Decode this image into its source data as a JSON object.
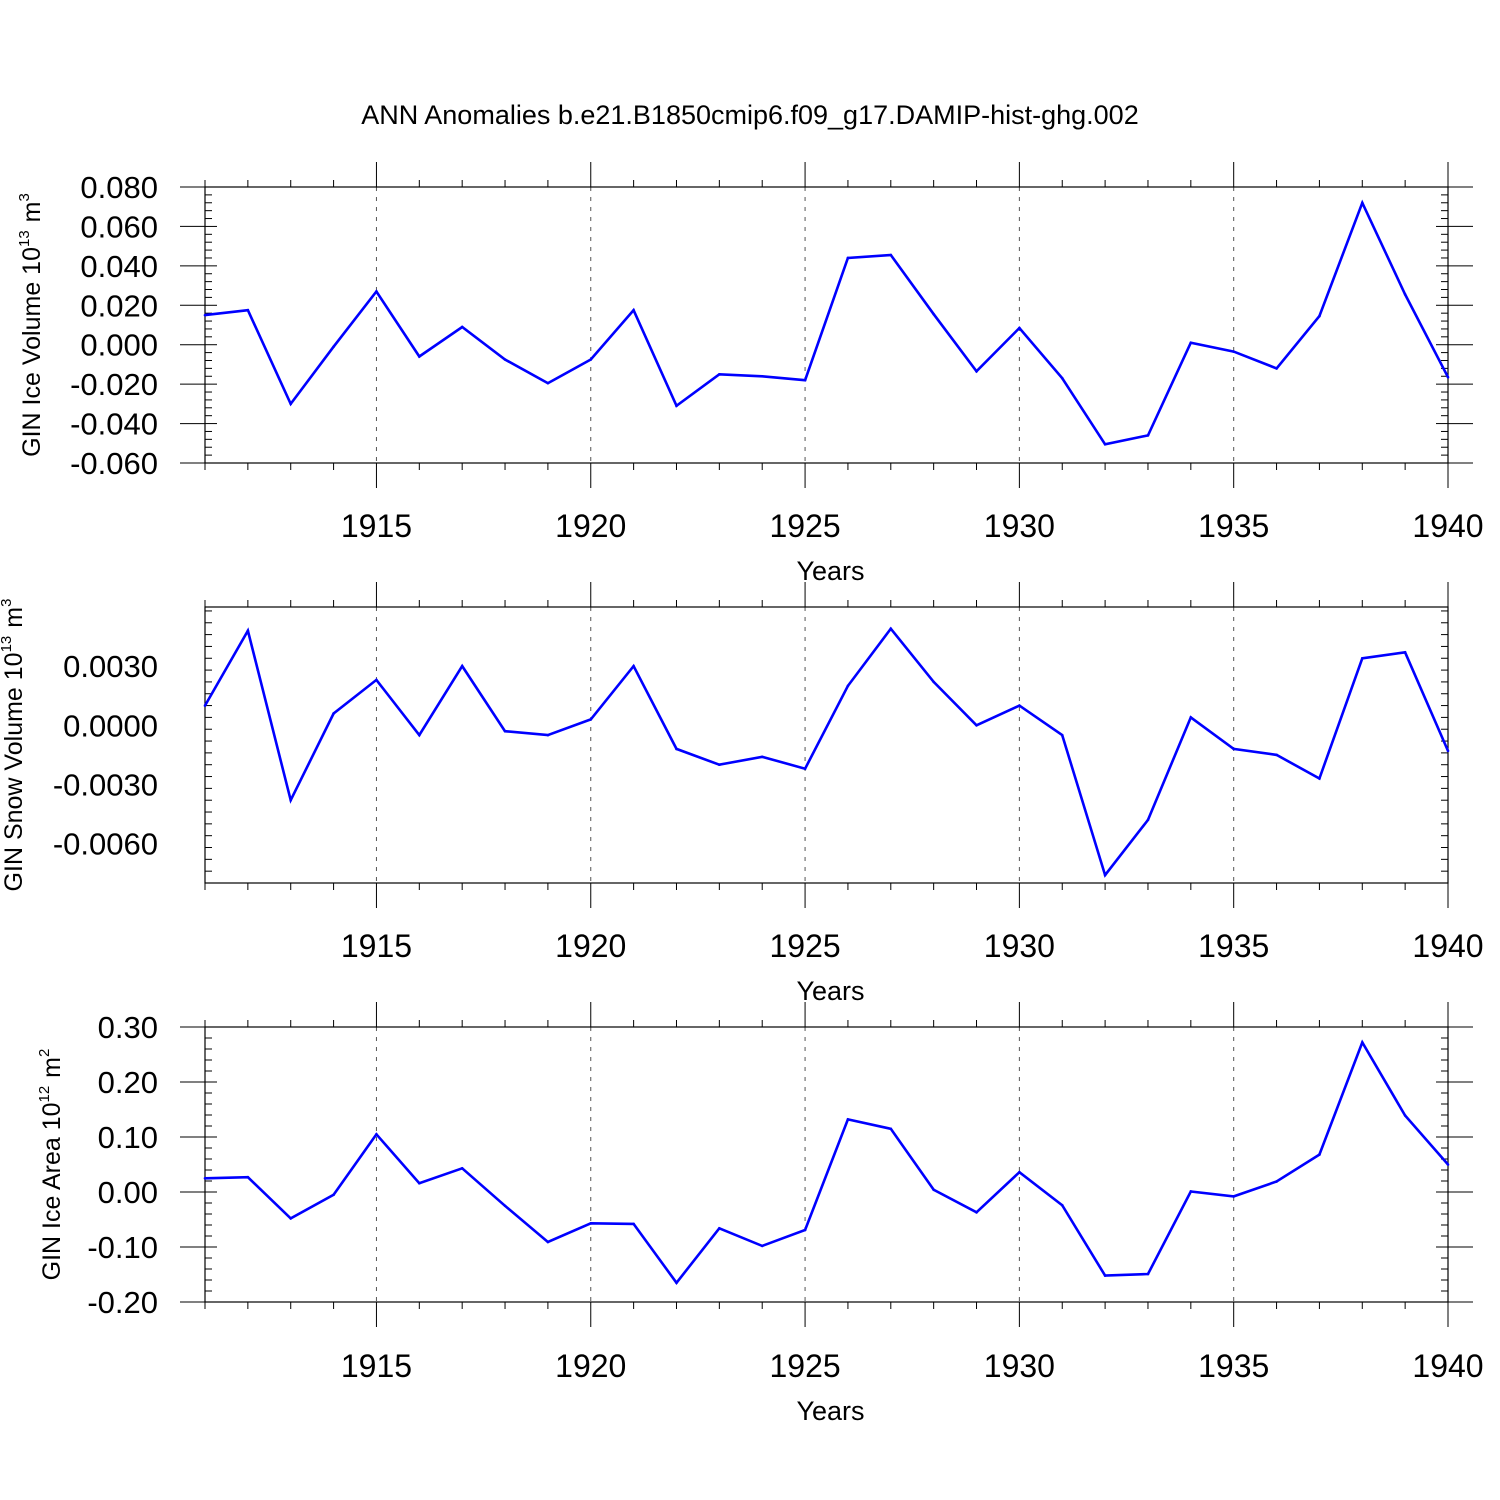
{
  "title": "ANN Anomalies b.e21.B1850cmip6.f09_g17.DAMIP-hist-ghg.002",
  "colors": {
    "series": "#0000ff",
    "axis": "#000000",
    "grid": "#555555"
  },
  "chart_data": [
    {
      "type": "line",
      "ylabel": {
        "text": "GIN Ice Volume 10",
        "exp": "13",
        "unit": "m",
        "unit_exp": "3"
      },
      "xlabel": "Years",
      "xlim": [
        1911,
        1940
      ],
      "ylim": [
        -0.06,
        0.08
      ],
      "xticks": [
        1915,
        1920,
        1925,
        1930,
        1935,
        1940
      ],
      "yticks": [
        -0.06,
        -0.04,
        -0.02,
        0.0,
        0.02,
        0.04,
        0.06,
        0.08
      ],
      "ytick_labels": [
        "-0.060",
        "-0.040",
        "-0.020",
        "0.000",
        "0.020",
        "0.040",
        "0.060",
        "0.080"
      ],
      "grid": "vertical dashed at major x ticks",
      "x": [
        1911,
        1912,
        1913,
        1914,
        1915,
        1916,
        1917,
        1918,
        1919,
        1920,
        1921,
        1922,
        1923,
        1924,
        1925,
        1926,
        1927,
        1928,
        1929,
        1930,
        1931,
        1932,
        1933,
        1934,
        1935,
        1936,
        1937,
        1938,
        1939,
        1940
      ],
      "values": [
        0.015,
        0.0175,
        -0.03,
        -0.001,
        0.027,
        -0.006,
        0.009,
        -0.0075,
        -0.0195,
        -0.0075,
        0.0175,
        -0.031,
        -0.015,
        -0.016,
        -0.018,
        0.044,
        0.0455,
        0.0155,
        -0.0135,
        0.0085,
        -0.017,
        -0.0505,
        -0.046,
        0.001,
        -0.0035,
        -0.012,
        0.0145,
        0.072,
        0.0255,
        -0.0165
      ]
    },
    {
      "type": "line",
      "ylabel": {
        "text": "GIN Snow Volume 10",
        "exp": "13",
        "unit": "m",
        "unit_exp": "3"
      },
      "xlabel": "Years",
      "xlim": [
        1911,
        1940
      ],
      "ylim": [
        -0.008,
        0.006
      ],
      "xticks": [
        1915,
        1920,
        1925,
        1930,
        1935,
        1940
      ],
      "yticks": [
        -0.006,
        -0.003,
        0.0,
        0.003
      ],
      "ytick_labels": [
        "-0.0060",
        "-0.0030",
        "0.0000",
        "0.0030"
      ],
      "grid": "vertical dashed at major x ticks",
      "x": [
        1911,
        1912,
        1913,
        1914,
        1915,
        1916,
        1917,
        1918,
        1919,
        1920,
        1921,
        1922,
        1923,
        1924,
        1925,
        1926,
        1927,
        1928,
        1929,
        1930,
        1931,
        1932,
        1933,
        1934,
        1935,
        1936,
        1937,
        1938,
        1939,
        1940
      ],
      "values": [
        0.001,
        0.0048,
        -0.0038,
        0.0006,
        0.0023,
        -0.0005,
        0.003,
        -0.0003,
        -0.0005,
        0.0003,
        0.003,
        -0.0012,
        -0.002,
        -0.0016,
        -0.0022,
        0.002,
        0.0049,
        0.0022,
        0.0,
        0.001,
        -0.0005,
        -0.0076,
        -0.0048,
        0.0004,
        -0.0012,
        -0.0015,
        -0.0027,
        0.0034,
        0.0037,
        -0.0013
      ]
    },
    {
      "type": "line",
      "ylabel": {
        "text": "GIN Ice Area 10",
        "exp": "12",
        "unit": "m",
        "unit_exp": "2"
      },
      "xlabel": "Years",
      "xlim": [
        1911,
        1940
      ],
      "ylim": [
        -0.2,
        0.3
      ],
      "xticks": [
        1915,
        1920,
        1925,
        1930,
        1935,
        1940
      ],
      "yticks": [
        -0.2,
        -0.1,
        0.0,
        0.1,
        0.2,
        0.3
      ],
      "ytick_labels": [
        "-0.20",
        "-0.10",
        "0.00",
        "0.10",
        "0.20",
        "0.30"
      ],
      "grid": "vertical dashed at major x ticks",
      "x": [
        1911,
        1912,
        1913,
        1914,
        1915,
        1916,
        1917,
        1918,
        1919,
        1920,
        1921,
        1922,
        1923,
        1924,
        1925,
        1926,
        1927,
        1928,
        1929,
        1930,
        1931,
        1932,
        1933,
        1934,
        1935,
        1936,
        1937,
        1938,
        1939,
        1940
      ],
      "values": [
        0.025,
        0.027,
        -0.048,
        -0.005,
        0.105,
        0.016,
        0.043,
        -0.025,
        -0.091,
        -0.057,
        -0.058,
        -0.165,
        -0.066,
        -0.098,
        -0.069,
        0.132,
        0.115,
        0.004,
        -0.037,
        0.036,
        -0.024,
        -0.152,
        -0.149,
        0.001,
        -0.008,
        0.019,
        0.068,
        0.272,
        0.139,
        0.05
      ]
    }
  ]
}
